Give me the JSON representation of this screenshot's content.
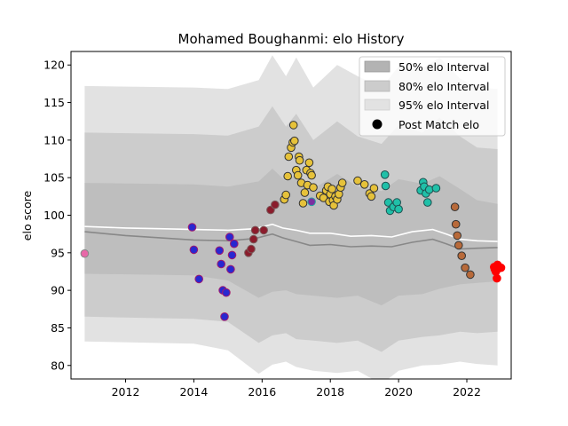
{
  "chart_data": {
    "type": "scatter",
    "title": "Mohamed Boughanmi: elo History",
    "xlabel": "",
    "ylabel": "elo score",
    "xlim": [
      2010.4,
      2023.3
    ],
    "ylim": [
      78.2,
      121.8
    ],
    "xticks": [
      2012,
      2014,
      2016,
      2018,
      2020,
      2022
    ],
    "yticks": [
      80,
      85,
      90,
      95,
      100,
      105,
      110,
      115,
      120
    ],
    "legend_position": "top-right",
    "legend": [
      {
        "label": "50% elo Interval",
        "kind": "band",
        "color": "#b3b3b3"
      },
      {
        "label": "80% elo Interval",
        "kind": "band",
        "color": "#cccccc"
      },
      {
        "label": "95% elo Interval",
        "kind": "band",
        "color": "#e2e2e2"
      },
      {
        "label": "Post Match elo",
        "kind": "marker",
        "color": "#000000"
      }
    ],
    "bands": {
      "x": [
        2010.8,
        2014.0,
        2015.0,
        2015.9,
        2016.3,
        2016.7,
        2017.0,
        2017.5,
        2018.2,
        2018.8,
        2019.5,
        2020.0,
        2020.7,
        2021.2,
        2021.8,
        2022.3,
        2022.9
      ],
      "ci95_hi": [
        117.2,
        117.0,
        116.8,
        118.0,
        121.3,
        118.5,
        121.0,
        117.0,
        120.0,
        118.5,
        117.0,
        119.8,
        119.5,
        121.0,
        118.2,
        117.0,
        116.8
      ],
      "ci80_hi": [
        111.0,
        110.8,
        110.6,
        111.8,
        114.5,
        111.8,
        113.5,
        110.0,
        112.5,
        110.5,
        109.5,
        112.0,
        111.0,
        113.0,
        110.5,
        109.0,
        108.8
      ],
      "ci50_hi": [
        104.3,
        104.1,
        103.8,
        104.5,
        106.2,
        104.5,
        105.5,
        103.5,
        105.5,
        103.8,
        103.2,
        104.8,
        104.2,
        105.2,
        103.5,
        102.0,
        101.5
      ],
      "ci50_lo": [
        92.2,
        92.0,
        91.3,
        89.0,
        89.8,
        90.0,
        89.5,
        89.3,
        89.0,
        89.3,
        88.0,
        89.3,
        89.5,
        90.2,
        90.8,
        91.0,
        91.2
      ],
      "ci80_lo": [
        86.5,
        86.2,
        85.8,
        83.0,
        84.0,
        84.3,
        83.5,
        83.3,
        83.0,
        83.3,
        81.8,
        83.3,
        83.8,
        84.0,
        84.5,
        84.3,
        84.5
      ],
      "ci95_lo": [
        83.2,
        82.9,
        82.0,
        78.9,
        80.1,
        80.5,
        79.8,
        79.3,
        79.0,
        79.3,
        77.5,
        79.3,
        80.0,
        80.1,
        80.5,
        80.2,
        80.0
      ]
    },
    "mean_line": {
      "color": "#ffffff",
      "x": [
        2010.8,
        2012.0,
        2013.0,
        2014.0,
        2015.0,
        2015.8,
        2016.3,
        2016.6,
        2017.0,
        2017.4,
        2018.0,
        2018.6,
        2019.2,
        2019.8,
        2020.4,
        2021.0,
        2021.4,
        2021.8,
        2022.3,
        2022.9
      ],
      "y": [
        98.5,
        98.3,
        98.2,
        98.1,
        98.0,
        98.2,
        98.8,
        98.3,
        98.0,
        97.6,
        97.6,
        97.2,
        97.3,
        97.1,
        97.8,
        98.1,
        97.5,
        96.8,
        96.6,
        96.5
      ]
    },
    "median_line": {
      "color": "#888888",
      "x": [
        2010.8,
        2012.0,
        2013.0,
        2014.0,
        2015.0,
        2015.8,
        2016.3,
        2016.6,
        2017.0,
        2017.4,
        2018.0,
        2018.6,
        2019.2,
        2019.8,
        2020.4,
        2021.0,
        2021.4,
        2021.8,
        2022.3,
        2022.9
      ],
      "y": [
        97.8,
        97.3,
        97.0,
        96.7,
        96.6,
        96.9,
        97.5,
        97.0,
        96.5,
        96.0,
        96.1,
        95.8,
        95.9,
        95.8,
        96.4,
        96.8,
        96.2,
        95.5,
        95.6,
        95.7
      ]
    },
    "series": [
      {
        "edge": "#888888",
        "fill": "#e868a8",
        "points": [
          [
            2010.8,
            94.9
          ]
        ]
      },
      {
        "edge": "#a0196e",
        "fill": "#2828d0",
        "points": [
          [
            2013.95,
            98.4
          ],
          [
            2014.0,
            95.4
          ],
          [
            2014.15,
            91.5
          ],
          [
            2014.75,
            95.3
          ],
          [
            2014.8,
            93.5
          ],
          [
            2014.85,
            90.0
          ],
          [
            2014.9,
            86.5
          ],
          [
            2014.95,
            89.7
          ],
          [
            2015.05,
            97.1
          ],
          [
            2015.08,
            92.8
          ],
          [
            2015.12,
            94.7
          ],
          [
            2015.18,
            96.2
          ]
        ]
      },
      {
        "edge": "#7a5a5a",
        "fill": "#8b1c2c",
        "points": [
          [
            2015.6,
            95.0
          ],
          [
            2015.68,
            95.5
          ],
          [
            2015.75,
            96.8
          ],
          [
            2015.8,
            98.0
          ],
          [
            2016.05,
            98.0
          ],
          [
            2016.25,
            100.7
          ],
          [
            2016.38,
            101.4
          ]
        ]
      },
      {
        "edge": "#333333",
        "fill": "#e6c23a",
        "points": [
          [
            2016.65,
            102.1
          ],
          [
            2016.7,
            102.7
          ],
          [
            2016.75,
            105.2
          ],
          [
            2016.78,
            107.8
          ],
          [
            2016.85,
            109.0
          ],
          [
            2016.9,
            109.7
          ],
          [
            2016.92,
            112.0
          ],
          [
            2016.95,
            109.9
          ],
          [
            2017.0,
            106.0
          ],
          [
            2017.05,
            105.3
          ],
          [
            2017.08,
            107.8
          ],
          [
            2017.1,
            107.3
          ],
          [
            2017.15,
            104.3
          ],
          [
            2017.2,
            101.6
          ],
          [
            2017.25,
            103.0
          ],
          [
            2017.3,
            106.0
          ],
          [
            2017.33,
            104.0
          ],
          [
            2017.38,
            107.0
          ],
          [
            2017.42,
            105.6
          ],
          [
            2017.45,
            105.3
          ],
          [
            2017.5,
            103.7
          ],
          [
            2017.7,
            102.6
          ],
          [
            2017.8,
            102.3
          ],
          [
            2017.88,
            103.3
          ],
          [
            2017.93,
            103.8
          ],
          [
            2017.97,
            101.8
          ],
          [
            2018.0,
            102.8
          ],
          [
            2018.05,
            103.5
          ],
          [
            2018.08,
            102.0
          ],
          [
            2018.1,
            101.3
          ],
          [
            2018.15,
            102.5
          ],
          [
            2018.2,
            102.1
          ],
          [
            2018.25,
            102.8
          ],
          [
            2018.3,
            103.7
          ],
          [
            2018.35,
            104.3
          ],
          [
            2018.8,
            104.6
          ],
          [
            2019.0,
            104.1
          ],
          [
            2019.15,
            102.9
          ],
          [
            2019.2,
            102.5
          ],
          [
            2019.28,
            103.6
          ]
        ]
      },
      {
        "edge": "#2aa0a0",
        "fill": "#7b2fa0",
        "points": [
          [
            2017.45,
            101.8
          ]
        ]
      },
      {
        "edge": "#1f5050",
        "fill": "#20c0a8",
        "points": [
          [
            2019.6,
            105.4
          ],
          [
            2019.62,
            103.9
          ],
          [
            2019.7,
            101.7
          ],
          [
            2019.75,
            100.6
          ],
          [
            2019.85,
            101.1
          ],
          [
            2019.95,
            101.7
          ],
          [
            2020.0,
            100.8
          ],
          [
            2020.65,
            103.3
          ],
          [
            2020.72,
            104.4
          ],
          [
            2020.75,
            103.8
          ],
          [
            2020.8,
            102.9
          ],
          [
            2020.85,
            101.7
          ],
          [
            2020.9,
            103.4
          ],
          [
            2021.1,
            103.6
          ]
        ]
      },
      {
        "edge": "#333333",
        "fill": "#b86a3a",
        "points": [
          [
            2021.65,
            101.1
          ],
          [
            2021.68,
            98.8
          ],
          [
            2021.72,
            97.3
          ],
          [
            2021.76,
            96.0
          ],
          [
            2021.85,
            94.6
          ],
          [
            2021.95,
            93.0
          ],
          [
            2022.1,
            92.1
          ]
        ]
      },
      {
        "edge": "#ff0000",
        "fill": "#ff0000",
        "points": [
          [
            2022.8,
            93.1
          ],
          [
            2022.82,
            92.8
          ],
          [
            2022.85,
            92.5
          ],
          [
            2022.88,
            91.6
          ],
          [
            2022.9,
            93.4
          ],
          [
            2022.92,
            92.9
          ],
          [
            2022.95,
            93.0
          ],
          [
            2023.0,
            93.0
          ]
        ]
      }
    ]
  }
}
